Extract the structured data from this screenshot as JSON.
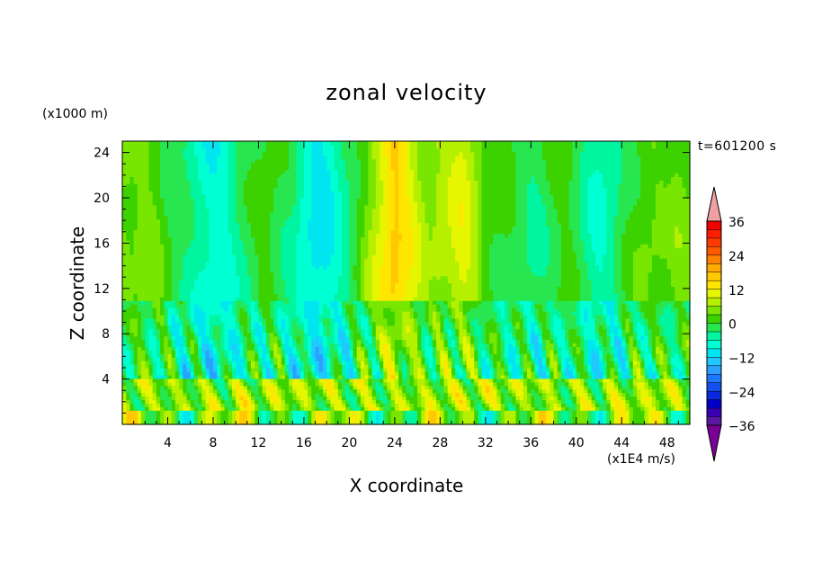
{
  "chart_data": {
    "type": "heatmap",
    "title": "zonal velocity",
    "xlabel": "X coordinate",
    "ylabel": "Z coordinate",
    "x_unit": "(x1E4 m/s)",
    "y_unit": "(x1000 m)",
    "time_label": "t=601200 s",
    "xlim": [
      0,
      50
    ],
    "ylim": [
      0,
      25
    ],
    "x_ticks": [
      "4",
      "8",
      "12",
      "16",
      "20",
      "24",
      "28",
      "32",
      "36",
      "40",
      "44",
      "48"
    ],
    "y_ticks": [
      "4",
      "8",
      "12",
      "16",
      "20",
      "24"
    ],
    "colorbar": {
      "levels": [
        -42,
        -39,
        -36,
        -33,
        -30,
        -27,
        -24,
        -21,
        -18,
        -15,
        -12,
        -9,
        -6,
        -3,
        0,
        3,
        6,
        9,
        12,
        15,
        18,
        21,
        24,
        27,
        30,
        33,
        36,
        39
      ],
      "labels": [
        "36",
        "24",
        "12",
        "0",
        "-12",
        "-24",
        "-36"
      ],
      "colors": [
        "#7a0096",
        "#5a1aa0",
        "#3a00b4",
        "#0000c8",
        "#0a28dc",
        "#1450f0",
        "#1e78ff",
        "#2aa0ff",
        "#20c8ff",
        "#00e6f0",
        "#00ffd2",
        "#00f5a0",
        "#28e650",
        "#3cd200",
        "#78e600",
        "#b4f000",
        "#e6f500",
        "#ffe600",
        "#ffc800",
        "#ffaa00",
        "#ff8200",
        "#ff5a00",
        "#ff3c00",
        "#ff1e00",
        "#f00000",
        "#f0a0a0"
      ],
      "extend": "both"
    },
    "description_values": {
      "column_means": [
        2,
        0,
        1,
        0,
        -3,
        -5,
        -7,
        -10,
        -11,
        -10,
        -7,
        -5,
        -3,
        -2,
        -4,
        -6,
        -11,
        -13,
        -12,
        -9,
        -6,
        -2,
        4,
        9,
        13,
        9,
        5,
        2,
        4,
        5,
        7,
        4,
        -1,
        -2,
        -3,
        -5,
        -6,
        -5,
        -3,
        -2,
        -4,
        -7,
        -9,
        -8,
        -5,
        -2,
        0,
        0,
        -1,
        1,
        0
      ],
      "surface_layer_km": 4,
      "mid_layer_km": [
        4,
        12
      ]
    }
  }
}
